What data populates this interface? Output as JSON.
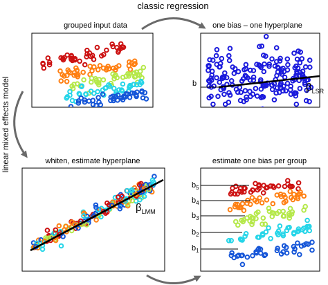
{
  "top_arrow_label": "classic regression",
  "side_arrow_label": "linear mixed effects model",
  "panels": {
    "grouped": {
      "title": "grouped input data"
    },
    "one_bias": {
      "title": "one bias – one hyperplane",
      "bias_label": "b",
      "beta_label": "β",
      "beta_sub": "LSR"
    },
    "whiten": {
      "title": "whiten, estimate hyperplane",
      "beta_label": "β",
      "beta_sub": "LMM"
    },
    "per_group": {
      "title": "estimate one bias per group",
      "bias_labels": [
        {
          "base": "b",
          "sub": "5"
        },
        {
          "base": "b",
          "sub": "4"
        },
        {
          "base": "b",
          "sub": "3"
        },
        {
          "base": "b",
          "sub": "2"
        },
        {
          "base": "b",
          "sub": "1"
        }
      ]
    }
  },
  "colors": {
    "groups": [
      "#cc1111",
      "#ff7f11",
      "#b5e84a",
      "#25d5e8",
      "#1455d8"
    ],
    "uniform": "#1a1adc",
    "line": "#000000",
    "arrow": "#6a6a6a"
  }
}
